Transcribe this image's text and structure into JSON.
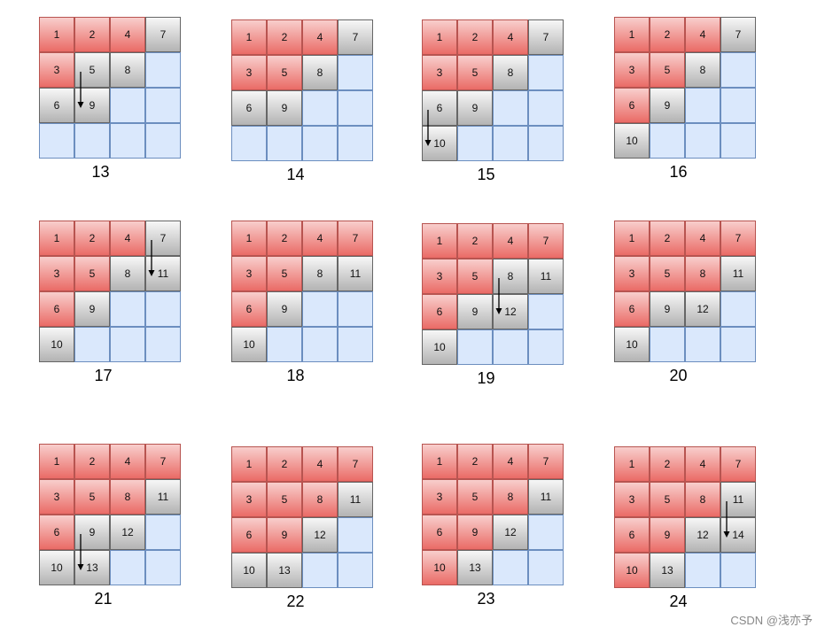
{
  "panels": [
    {
      "caption": "13",
      "cells": [
        {
          "t": "1",
          "s": "r"
        },
        {
          "t": "2",
          "s": "r"
        },
        {
          "t": "4",
          "s": "r"
        },
        {
          "t": "7",
          "s": "g"
        },
        {
          "t": "3",
          "s": "r"
        },
        {
          "t": "5",
          "s": "g"
        },
        {
          "t": "8",
          "s": "g"
        },
        {
          "t": "",
          "s": "e"
        },
        {
          "t": "6",
          "s": "g"
        },
        {
          "t": "9",
          "s": "g"
        },
        {
          "t": "",
          "s": "e"
        },
        {
          "t": "",
          "s": "e"
        },
        {
          "t": "",
          "s": "e"
        },
        {
          "t": "",
          "s": "e"
        },
        {
          "t": "",
          "s": "e"
        },
        {
          "t": "",
          "s": "e"
        }
      ],
      "arrow": {
        "from": 5,
        "to": 9
      }
    },
    {
      "caption": "14",
      "cells": [
        {
          "t": "1",
          "s": "r"
        },
        {
          "t": "2",
          "s": "r"
        },
        {
          "t": "4",
          "s": "r"
        },
        {
          "t": "7",
          "s": "g"
        },
        {
          "t": "3",
          "s": "r"
        },
        {
          "t": "5",
          "s": "r"
        },
        {
          "t": "8",
          "s": "g"
        },
        {
          "t": "",
          "s": "e"
        },
        {
          "t": "6",
          "s": "g"
        },
        {
          "t": "9",
          "s": "g"
        },
        {
          "t": "",
          "s": "e"
        },
        {
          "t": "",
          "s": "e"
        },
        {
          "t": "",
          "s": "e"
        },
        {
          "t": "",
          "s": "e"
        },
        {
          "t": "",
          "s": "e"
        },
        {
          "t": "",
          "s": "e"
        }
      ],
      "arrow": null
    },
    {
      "caption": "15",
      "cells": [
        {
          "t": "1",
          "s": "r"
        },
        {
          "t": "2",
          "s": "r"
        },
        {
          "t": "4",
          "s": "r"
        },
        {
          "t": "7",
          "s": "g"
        },
        {
          "t": "3",
          "s": "r"
        },
        {
          "t": "5",
          "s": "r"
        },
        {
          "t": "8",
          "s": "g"
        },
        {
          "t": "",
          "s": "e"
        },
        {
          "t": "6",
          "s": "g"
        },
        {
          "t": "9",
          "s": "g"
        },
        {
          "t": "",
          "s": "e"
        },
        {
          "t": "",
          "s": "e"
        },
        {
          "t": "10",
          "s": "g"
        },
        {
          "t": "",
          "s": "e"
        },
        {
          "t": "",
          "s": "e"
        },
        {
          "t": "",
          "s": "e"
        }
      ],
      "arrow": {
        "from": 8,
        "to": 12
      }
    },
    {
      "caption": "16",
      "cells": [
        {
          "t": "1",
          "s": "r"
        },
        {
          "t": "2",
          "s": "r"
        },
        {
          "t": "4",
          "s": "r"
        },
        {
          "t": "7",
          "s": "g"
        },
        {
          "t": "3",
          "s": "r"
        },
        {
          "t": "5",
          "s": "r"
        },
        {
          "t": "8",
          "s": "g"
        },
        {
          "t": "",
          "s": "e"
        },
        {
          "t": "6",
          "s": "r"
        },
        {
          "t": "9",
          "s": "g"
        },
        {
          "t": "",
          "s": "e"
        },
        {
          "t": "",
          "s": "e"
        },
        {
          "t": "10",
          "s": "g"
        },
        {
          "t": "",
          "s": "e"
        },
        {
          "t": "",
          "s": "e"
        },
        {
          "t": "",
          "s": "e"
        }
      ],
      "arrow": null
    },
    {
      "caption": "17",
      "cells": [
        {
          "t": "1",
          "s": "r"
        },
        {
          "t": "2",
          "s": "r"
        },
        {
          "t": "4",
          "s": "r"
        },
        {
          "t": "7",
          "s": "g"
        },
        {
          "t": "3",
          "s": "r"
        },
        {
          "t": "5",
          "s": "r"
        },
        {
          "t": "8",
          "s": "g"
        },
        {
          "t": "11",
          "s": "g"
        },
        {
          "t": "6",
          "s": "r"
        },
        {
          "t": "9",
          "s": "g"
        },
        {
          "t": "",
          "s": "e"
        },
        {
          "t": "",
          "s": "e"
        },
        {
          "t": "10",
          "s": "g"
        },
        {
          "t": "",
          "s": "e"
        },
        {
          "t": "",
          "s": "e"
        },
        {
          "t": "",
          "s": "e"
        }
      ],
      "arrow": {
        "from": 3,
        "to": 7
      }
    },
    {
      "caption": "18",
      "cells": [
        {
          "t": "1",
          "s": "r"
        },
        {
          "t": "2",
          "s": "r"
        },
        {
          "t": "4",
          "s": "r"
        },
        {
          "t": "7",
          "s": "r"
        },
        {
          "t": "3",
          "s": "r"
        },
        {
          "t": "5",
          "s": "r"
        },
        {
          "t": "8",
          "s": "g"
        },
        {
          "t": "11",
          "s": "g"
        },
        {
          "t": "6",
          "s": "r"
        },
        {
          "t": "9",
          "s": "g"
        },
        {
          "t": "",
          "s": "e"
        },
        {
          "t": "",
          "s": "e"
        },
        {
          "t": "10",
          "s": "g"
        },
        {
          "t": "",
          "s": "e"
        },
        {
          "t": "",
          "s": "e"
        },
        {
          "t": "",
          "s": "e"
        }
      ],
      "arrow": null
    },
    {
      "caption": "19",
      "cells": [
        {
          "t": "1",
          "s": "r"
        },
        {
          "t": "2",
          "s": "r"
        },
        {
          "t": "4",
          "s": "r"
        },
        {
          "t": "7",
          "s": "r"
        },
        {
          "t": "3",
          "s": "r"
        },
        {
          "t": "5",
          "s": "r"
        },
        {
          "t": "8",
          "s": "g"
        },
        {
          "t": "11",
          "s": "g"
        },
        {
          "t": "6",
          "s": "r"
        },
        {
          "t": "9",
          "s": "g"
        },
        {
          "t": "12",
          "s": "g"
        },
        {
          "t": "",
          "s": "e"
        },
        {
          "t": "10",
          "s": "g"
        },
        {
          "t": "",
          "s": "e"
        },
        {
          "t": "",
          "s": "e"
        },
        {
          "t": "",
          "s": "e"
        }
      ],
      "arrow": {
        "from": 6,
        "to": 10
      }
    },
    {
      "caption": "20",
      "cells": [
        {
          "t": "1",
          "s": "r"
        },
        {
          "t": "2",
          "s": "r"
        },
        {
          "t": "4",
          "s": "r"
        },
        {
          "t": "7",
          "s": "r"
        },
        {
          "t": "3",
          "s": "r"
        },
        {
          "t": "5",
          "s": "r"
        },
        {
          "t": "8",
          "s": "r"
        },
        {
          "t": "11",
          "s": "g"
        },
        {
          "t": "6",
          "s": "r"
        },
        {
          "t": "9",
          "s": "g"
        },
        {
          "t": "12",
          "s": "g"
        },
        {
          "t": "",
          "s": "e"
        },
        {
          "t": "10",
          "s": "g"
        },
        {
          "t": "",
          "s": "e"
        },
        {
          "t": "",
          "s": "e"
        },
        {
          "t": "",
          "s": "e"
        }
      ],
      "arrow": null
    },
    {
      "caption": "21",
      "cells": [
        {
          "t": "1",
          "s": "r"
        },
        {
          "t": "2",
          "s": "r"
        },
        {
          "t": "4",
          "s": "r"
        },
        {
          "t": "7",
          "s": "r"
        },
        {
          "t": "3",
          "s": "r"
        },
        {
          "t": "5",
          "s": "r"
        },
        {
          "t": "8",
          "s": "r"
        },
        {
          "t": "11",
          "s": "g"
        },
        {
          "t": "6",
          "s": "r"
        },
        {
          "t": "9",
          "s": "g"
        },
        {
          "t": "12",
          "s": "g"
        },
        {
          "t": "",
          "s": "e"
        },
        {
          "t": "10",
          "s": "g"
        },
        {
          "t": "13",
          "s": "g"
        },
        {
          "t": "",
          "s": "e"
        },
        {
          "t": "",
          "s": "e"
        }
      ],
      "arrow": {
        "from": 9,
        "to": 13
      }
    },
    {
      "caption": "22",
      "cells": [
        {
          "t": "1",
          "s": "r"
        },
        {
          "t": "2",
          "s": "r"
        },
        {
          "t": "4",
          "s": "r"
        },
        {
          "t": "7",
          "s": "r"
        },
        {
          "t": "3",
          "s": "r"
        },
        {
          "t": "5",
          "s": "r"
        },
        {
          "t": "8",
          "s": "r"
        },
        {
          "t": "11",
          "s": "g"
        },
        {
          "t": "6",
          "s": "r"
        },
        {
          "t": "9",
          "s": "r"
        },
        {
          "t": "12",
          "s": "g"
        },
        {
          "t": "",
          "s": "e"
        },
        {
          "t": "10",
          "s": "g"
        },
        {
          "t": "13",
          "s": "g"
        },
        {
          "t": "",
          "s": "e"
        },
        {
          "t": "",
          "s": "e"
        }
      ],
      "arrow": null
    },
    {
      "caption": "23",
      "cells": [
        {
          "t": "1",
          "s": "r"
        },
        {
          "t": "2",
          "s": "r"
        },
        {
          "t": "4",
          "s": "r"
        },
        {
          "t": "7",
          "s": "r"
        },
        {
          "t": "3",
          "s": "r"
        },
        {
          "t": "5",
          "s": "r"
        },
        {
          "t": "8",
          "s": "r"
        },
        {
          "t": "11",
          "s": "g"
        },
        {
          "t": "6",
          "s": "r"
        },
        {
          "t": "9",
          "s": "r"
        },
        {
          "t": "12",
          "s": "g"
        },
        {
          "t": "",
          "s": "e"
        },
        {
          "t": "10",
          "s": "r"
        },
        {
          "t": "13",
          "s": "g"
        },
        {
          "t": "",
          "s": "e"
        },
        {
          "t": "",
          "s": "e"
        }
      ],
      "arrow": null
    },
    {
      "caption": "24",
      "cells": [
        {
          "t": "1",
          "s": "r"
        },
        {
          "t": "2",
          "s": "r"
        },
        {
          "t": "4",
          "s": "r"
        },
        {
          "t": "7",
          "s": "r"
        },
        {
          "t": "3",
          "s": "r"
        },
        {
          "t": "5",
          "s": "r"
        },
        {
          "t": "8",
          "s": "r"
        },
        {
          "t": "11",
          "s": "g"
        },
        {
          "t": "6",
          "s": "r"
        },
        {
          "t": "9",
          "s": "r"
        },
        {
          "t": "12",
          "s": "g"
        },
        {
          "t": "14",
          "s": "g"
        },
        {
          "t": "10",
          "s": "r"
        },
        {
          "t": "13",
          "s": "g"
        },
        {
          "t": "",
          "s": "e"
        },
        {
          "t": "",
          "s": "e"
        }
      ],
      "arrow": {
        "from": 7,
        "to": 11
      }
    }
  ],
  "watermark": "CSDN @浅亦予",
  "colors": {
    "red": "#ea6b66",
    "gray": "#b3b3b3",
    "empty": "#dae8fc",
    "border_blue": "#6c8ebf"
  }
}
